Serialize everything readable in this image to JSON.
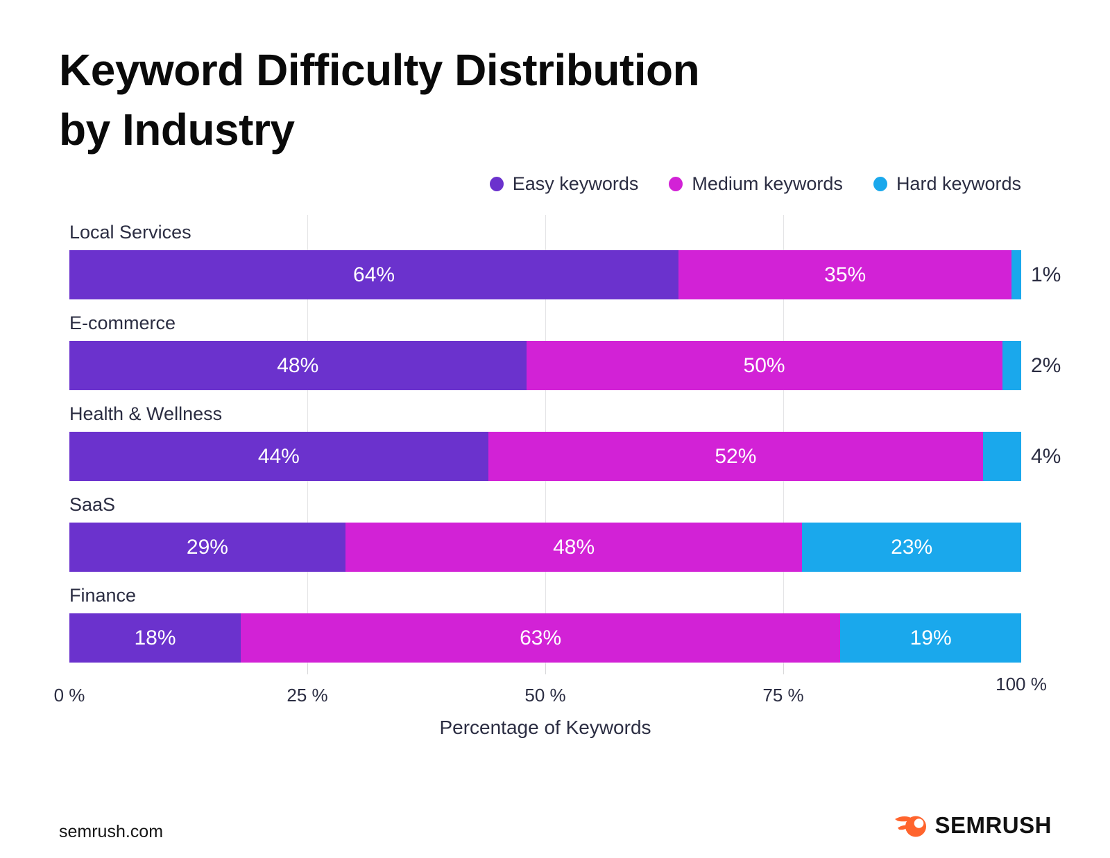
{
  "title": {
    "line1": "Keyword Difficulty Distribution",
    "line2": "by Industry"
  },
  "legend": [
    {
      "label": "Easy keywords",
      "color": "#6B32CD"
    },
    {
      "label": "Medium keywords",
      "color": "#D222D6"
    },
    {
      "label": "Hard keywords",
      "color": "#1AA8EC"
    }
  ],
  "chart_data": {
    "type": "bar",
    "orientation": "horizontal-stacked",
    "title": "Keyword Difficulty Distribution by Industry",
    "categories": [
      "Local Services",
      "E-commerce",
      "Health & Wellness",
      "SaaS",
      "Finance"
    ],
    "series": [
      {
        "name": "Easy keywords",
        "color": "#6B32CD",
        "values": [
          64,
          48,
          44,
          29,
          18
        ]
      },
      {
        "name": "Medium keywords",
        "color": "#D222D6",
        "values": [
          35,
          50,
          52,
          48,
          63
        ]
      },
      {
        "name": "Hard keywords",
        "color": "#1AA8EC",
        "values": [
          1,
          2,
          4,
          23,
          19
        ]
      }
    ],
    "value_suffix": "%",
    "xlabel": "Percentage of Keywords",
    "xlim": [
      0,
      100
    ],
    "x_ticks": [
      "0 %",
      "25 %",
      "50 %",
      "75 %",
      "100 %"
    ],
    "x_tick_values": [
      0,
      25,
      50,
      75,
      100
    ],
    "grid": "vertical gridlines at 25, 50, 75",
    "legend_position": "top-right",
    "bar_value_labels": "inside white, outside dark when segment too small"
  },
  "footer": {
    "site": "semrush.com",
    "brand": "SEMRUSH",
    "brand_color": "#FF642D"
  },
  "colors": {
    "background": "#ffffff",
    "text_dark": "#2b2d42",
    "title": "#0a0a0a",
    "gridline": "#e4e4e6"
  }
}
